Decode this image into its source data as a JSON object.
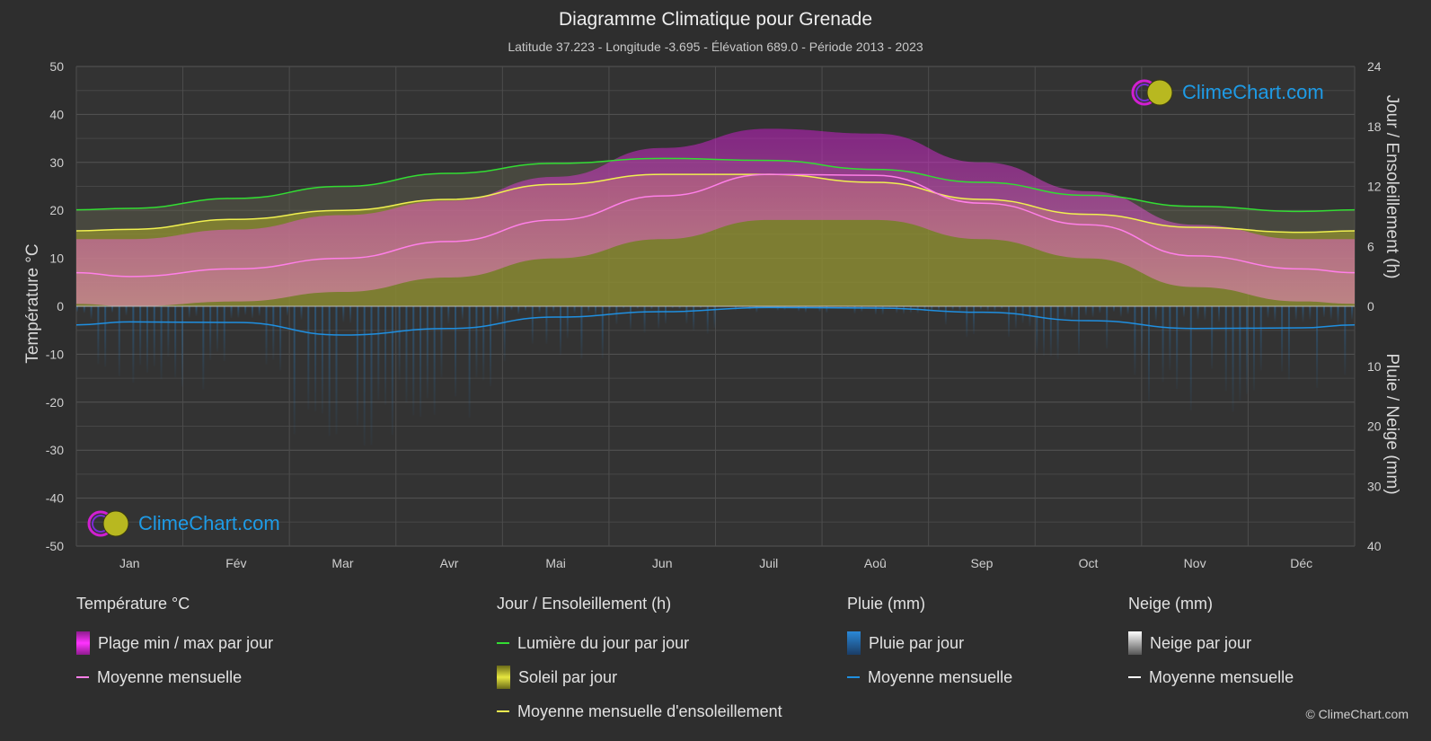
{
  "title": "Diagramme Climatique pour Grenade",
  "subtitle": "Latitude 37.223 - Longitude -3.695 - Élévation 689.0 - Période 2013 - 2023",
  "axes": {
    "left_label": "Température °C",
    "right_top_label": "Jour / Ensoleillement (h)",
    "right_bottom_label": "Pluie / Neige (mm)",
    "left_ticks": [
      "50",
      "40",
      "30",
      "20",
      "10",
      "0",
      "-10",
      "-20",
      "-30",
      "-40",
      "-50"
    ],
    "right_top_ticks": [
      "24",
      "18",
      "12",
      "6",
      "0"
    ],
    "right_bottom_ticks": [
      "10",
      "20",
      "30",
      "40"
    ]
  },
  "legend": {
    "temperature": {
      "header": "Température °C",
      "range": "Plage min / max par jour",
      "mean": "Moyenne mensuelle"
    },
    "sun": {
      "header": "Jour / Ensoleillement (h)",
      "daylight": "Lumière du jour par jour",
      "sunshine": "Soleil par jour",
      "sun_mean": "Moyenne mensuelle d'ensoleillement"
    },
    "rain": {
      "header": "Pluie (mm)",
      "daily": "Pluie par jour",
      "mean": "Moyenne mensuelle"
    },
    "snow": {
      "header": "Neige (mm)",
      "daily": "Neige par jour",
      "mean": "Moyenne mensuelle"
    }
  },
  "logo_text": "ClimeChart.com",
  "copyright": "© ClimeChart.com",
  "colors": {
    "background": "#2e2e2e",
    "temp_range": "#d11fd1",
    "temp_mean": "#ff7fe8",
    "daylight": "#33dd33",
    "sunshine": "#a9a928",
    "sun_mean": "#f0f050",
    "rain": "#2a88d8",
    "rain_mean": "#1f8fe0",
    "snow_mean": "#ffffff",
    "logo": "#1e9be6"
  },
  "chart_data": {
    "type": "area",
    "x_categories": [
      "Jan",
      "Fév",
      "Mar",
      "Avr",
      "Mai",
      "Jun",
      "Juil",
      "Aoû",
      "Sep",
      "Oct",
      "Nov",
      "Déc"
    ],
    "temperature_ylim": [
      -50,
      50
    ],
    "sun_ylim_hours": [
      0,
      24
    ],
    "precip_ylim_mm": [
      0,
      40
    ],
    "series": [
      {
        "name": "Moyenne mensuelle",
        "kind": "temp_mean",
        "unit": "°C",
        "values": [
          6.2,
          7.8,
          10.0,
          13.5,
          18.0,
          23.0,
          27.5,
          27.3,
          21.5,
          17.0,
          10.5,
          7.8
        ]
      },
      {
        "name": "Plage min / max par jour (max)",
        "kind": "temp_max",
        "unit": "°C",
        "values": [
          14,
          16,
          19,
          22,
          27,
          33,
          37,
          36,
          30,
          24,
          17,
          14
        ]
      },
      {
        "name": "Plage min / max par jour (min)",
        "kind": "temp_min",
        "unit": "°C",
        "values": [
          0,
          1,
          3,
          6,
          10,
          14,
          18,
          18,
          14,
          10,
          4,
          1
        ]
      },
      {
        "name": "Lumière du jour par jour",
        "kind": "daylight",
        "unit": "h",
        "values": [
          9.8,
          10.8,
          12.0,
          13.3,
          14.3,
          14.8,
          14.6,
          13.7,
          12.4,
          11.1,
          10.0,
          9.5
        ]
      },
      {
        "name": "Moyenne mensuelle d'ensoleillement",
        "kind": "sun_mean",
        "unit": "h",
        "values": [
          7.7,
          8.7,
          9.6,
          10.7,
          12.2,
          13.2,
          13.2,
          12.4,
          10.7,
          9.2,
          7.9,
          7.4
        ]
      },
      {
        "name": "Pluie moyenne mensuelle",
        "kind": "rain_mean",
        "unit": "mm",
        "values": [
          2.6,
          2.7,
          4.8,
          3.7,
          1.8,
          0.9,
          0.2,
          0.3,
          1.0,
          2.4,
          3.7,
          3.6
        ]
      }
    ]
  }
}
